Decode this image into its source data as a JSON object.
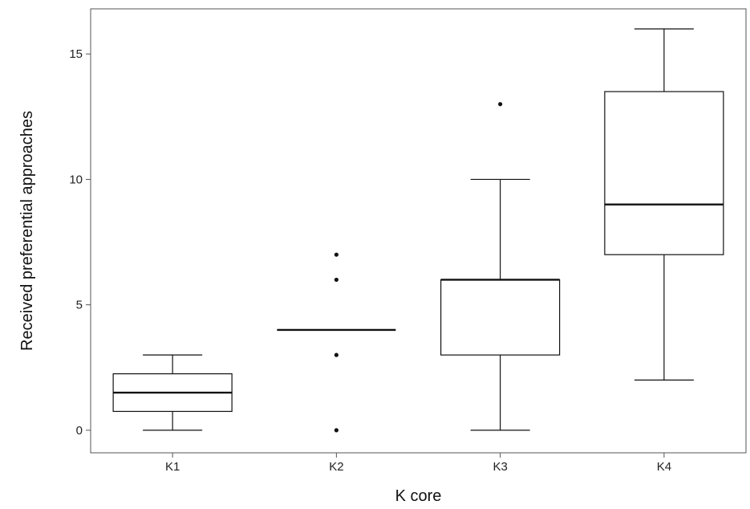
{
  "chart_data": {
    "type": "box",
    "title": "",
    "xlabel": "K core",
    "ylabel": "Received preferential approaches",
    "categories": [
      "K1",
      "K2",
      "K3",
      "K4"
    ],
    "ylim": [
      -0.9,
      16.8
    ],
    "yticks": [
      0,
      5,
      10,
      15
    ],
    "ytick_labels": [
      "0",
      "5",
      "10",
      "15"
    ],
    "grid": false,
    "legend": "none",
    "boxes": [
      {
        "category": "K1",
        "whisker_low": 0,
        "q1": 0.75,
        "median": 1.5,
        "q3": 2.25,
        "whisker_high": 3,
        "outliers": []
      },
      {
        "category": "K2",
        "whisker_low": 4,
        "q1": 4,
        "median": 4,
        "q3": 4,
        "whisker_high": 4,
        "outliers": [
          0,
          3,
          6,
          7
        ]
      },
      {
        "category": "K3",
        "whisker_low": 0,
        "q1": 3,
        "median": 6,
        "q3": 6,
        "whisker_high": 10,
        "outliers": [
          13
        ]
      },
      {
        "category": "K4",
        "whisker_low": 2,
        "q1": 7,
        "median": 9,
        "q3": 13.5,
        "whisker_high": 16,
        "outliers": []
      }
    ],
    "colors": {
      "box_stroke": "#111111",
      "box_fill": "#ffffff",
      "outlier": "#111111",
      "frame": "#555555"
    }
  }
}
